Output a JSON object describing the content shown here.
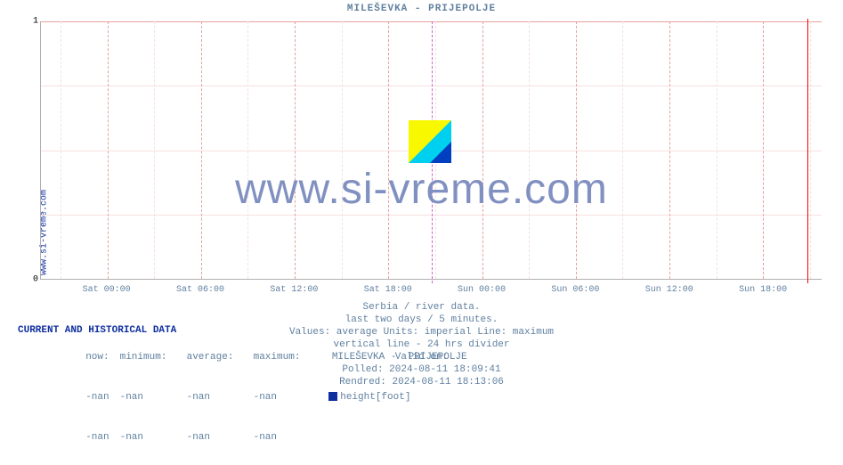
{
  "title": "MILEŠEVKA -  PRIJEPOLJE",
  "y_label": "www.si-vreme.com",
  "chart": {
    "type": "line",
    "ylim": [
      0,
      1
    ],
    "yticks": [
      0,
      1
    ],
    "xticks": [
      "Sat 00:00",
      "Sat 06:00",
      "Sat 12:00",
      "Sat 18:00",
      "Sun 00:00",
      "Sun 06:00",
      "Sun 12:00",
      "Sun 18:00"
    ],
    "xtick_positions_pct": [
      8.5,
      20.5,
      32.5,
      44.5,
      56.5,
      68.5,
      80.5,
      92.5
    ],
    "grid_major_color": "#e8a0a0",
    "grid_minor_color": "#f5e0e0",
    "divider_color": "#d060d0",
    "end_arrow_color": "#ff0000",
    "divider_position_pct": 50.1,
    "end_position_pct": 98.2,
    "minor_vgrid_pct": [
      2.5,
      14.5,
      26.5,
      38.5,
      50.5,
      62.5,
      74.5,
      86.5,
      98.5
    ],
    "background_color": "#ffffff"
  },
  "watermark": {
    "text": "www.si-vreme.com",
    "text_color": "#8090c0",
    "logo_colors": {
      "yellow": "#f8f800",
      "cyan": "#00d0f0",
      "blue": "#0040c0"
    }
  },
  "meta": {
    "line1": "Serbia / river data.",
    "line2": "last two days / 5 minutes.",
    "line3": "Values: average  Units: imperial  Line: maximum",
    "line4": "vertical line - 24 hrs  divider",
    "line5": "Valid on:",
    "line6": "Polled: 2024-08-11 18:09:41",
    "line7": "Rendred: 2024-08-11 18:13:06",
    "color": "#6080a0"
  },
  "data": {
    "header": "CURRENT AND HISTORICAL DATA",
    "header_color": "#1030a0",
    "columns": [
      "now:",
      "minimum:",
      "average:",
      "maximum:"
    ],
    "station_label": "MILEŠEVKA -  PRIJEPOLJE",
    "series_label": "height[foot]",
    "swatch_color": "#1030a0",
    "row1": [
      "-nan",
      "-nan",
      "-nan",
      "-nan"
    ],
    "row2": [
      "-nan",
      "-nan",
      "-nan",
      "-nan"
    ],
    "text_color": "#6080a0"
  }
}
